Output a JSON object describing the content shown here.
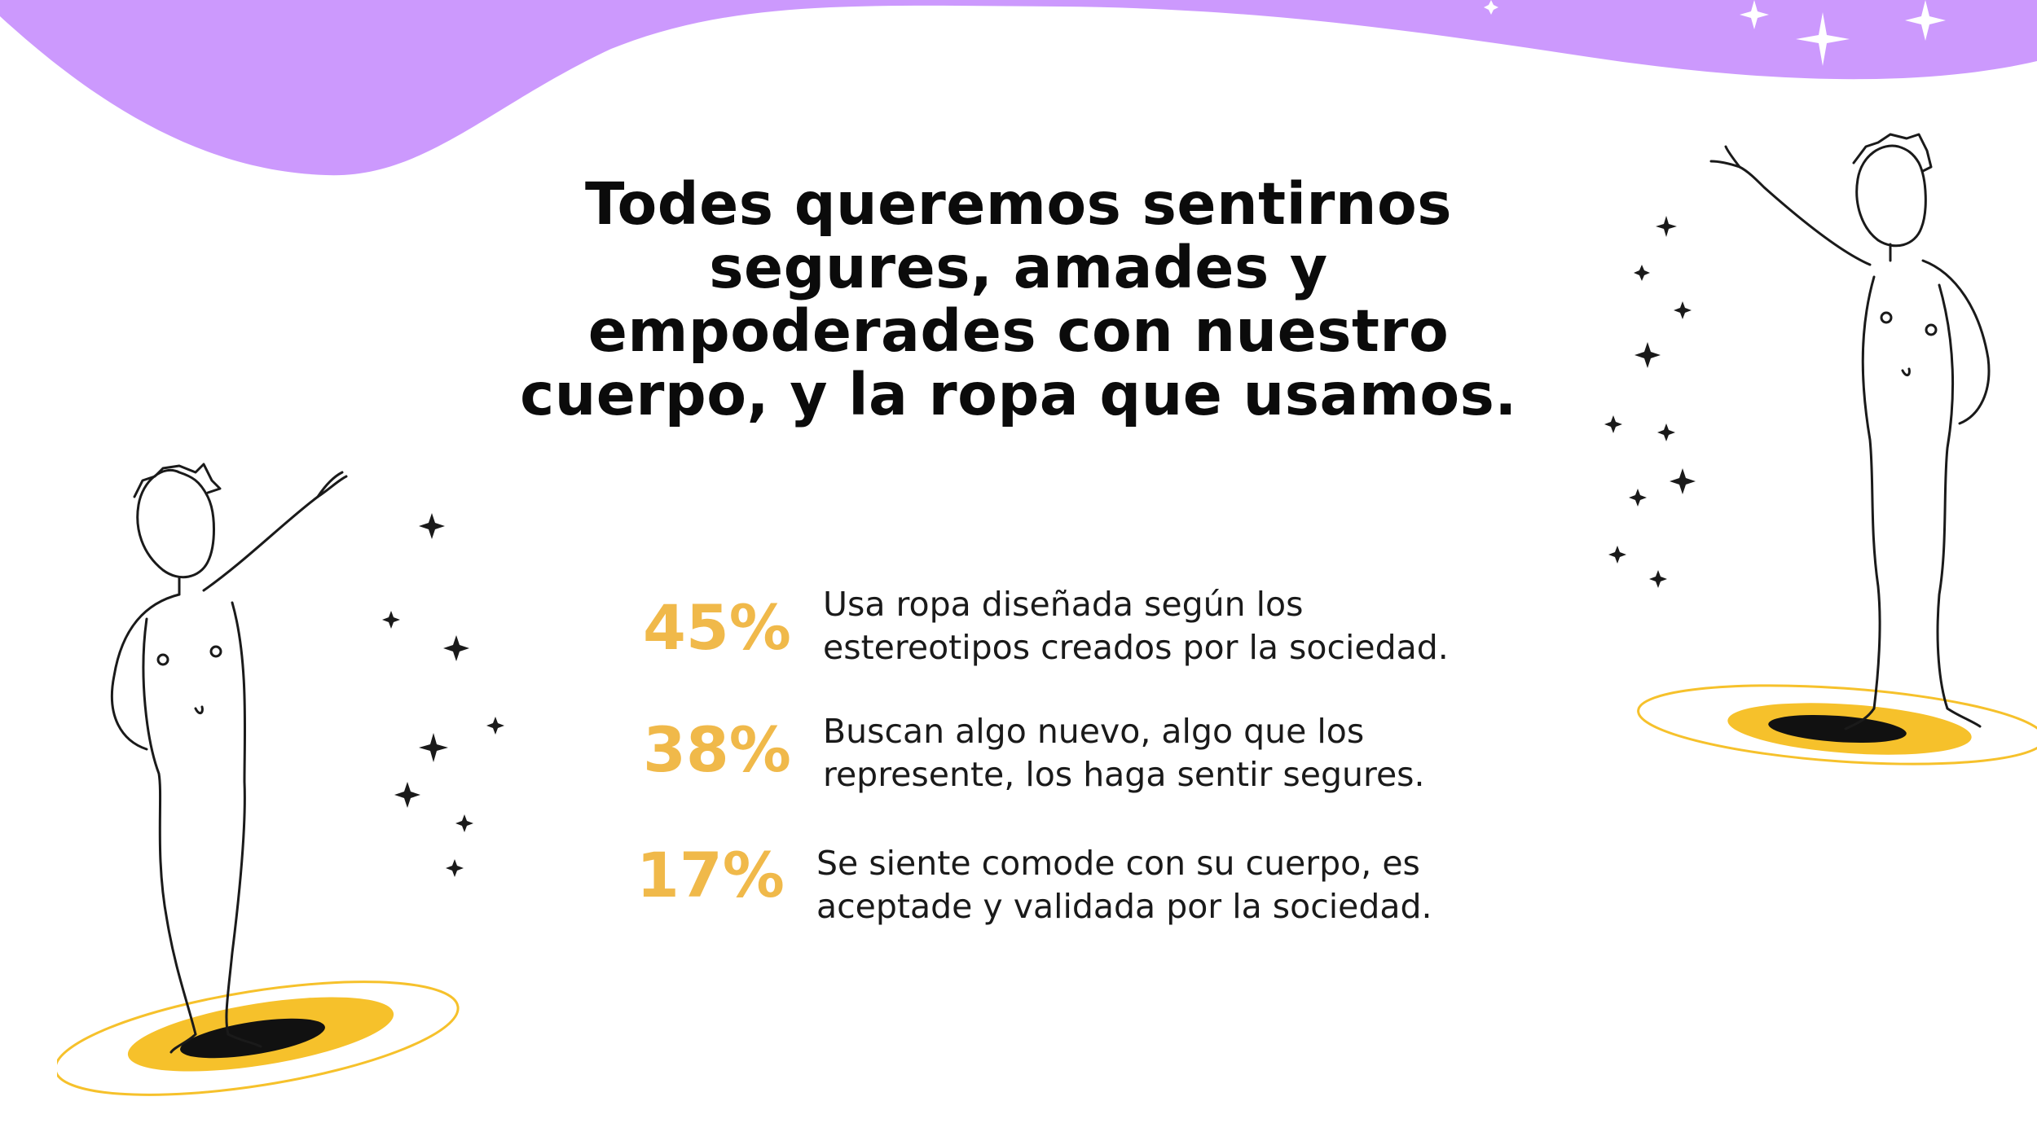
{
  "colors": {
    "wave": "#cc99fd",
    "accent": "#f0b94a",
    "ring": "#f6c12b",
    "hole": "#111111",
    "ink": "#1a1a1a"
  },
  "title": {
    "lines": [
      "Todes queremos sentirnos",
      "segures, amades y",
      "empoderades con nuestro",
      "cuerpo, y la ropa que usamos."
    ]
  },
  "stats": [
    {
      "percent": "45%",
      "lines": [
        "Usa ropa diseñada según los",
        "estereotipos creados por la sociedad."
      ]
    },
    {
      "percent": "38%",
      "lines": [
        "Buscan algo nuevo, algo que los",
        "represente, los haga sentir segures."
      ]
    },
    {
      "percent": "17%",
      "lines": [
        "Se siente comode con su cuerpo, es",
        "aceptade  y validada por la sociedad."
      ]
    }
  ],
  "illustrations": {
    "left": "figure-on-portal-illustration",
    "right": "figure-on-portal-illustration"
  }
}
